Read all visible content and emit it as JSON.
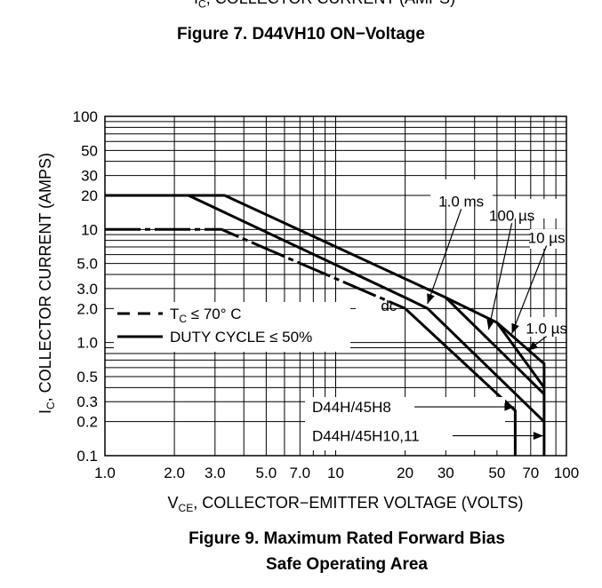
{
  "previous_figure": {
    "axis_label_prefix": "I",
    "axis_label_sub": "C",
    "axis_label_rest": ", COLLECTOR CURRENT (AMPS)",
    "title": "Figure 7. D44VH10 ON−Voltage"
  },
  "figure": {
    "title_line1": "Figure 9. Maximum Rated Forward Bias",
    "title_line2": "Safe Operating Area"
  },
  "chart_data": {
    "type": "line",
    "x_scale": "log",
    "y_scale": "log",
    "xlim": [
      1,
      100
    ],
    "ylim": [
      0.1,
      100
    ],
    "grid": true,
    "xlabel": {
      "prefix": "V",
      "sub": "CE",
      "rest": ", COLLECTOR−EMITTER VOLTAGE (VOLTS)"
    },
    "ylabel": {
      "prefix": "I",
      "sub": "C",
      "rest": ", COLLECTOR CURRENT (AMPS)"
    },
    "xticks": [
      {
        "value": 1,
        "label": "1.0"
      },
      {
        "value": 2,
        "label": "2.0"
      },
      {
        "value": 3,
        "label": "3.0"
      },
      {
        "value": 5,
        "label": "5.0"
      },
      {
        "value": 7,
        "label": "7.0"
      },
      {
        "value": 10,
        "label": "10"
      },
      {
        "value": 20,
        "label": "20"
      },
      {
        "value": 30,
        "label": "30"
      },
      {
        "value": 50,
        "label": "50"
      },
      {
        "value": 70,
        "label": "70"
      },
      {
        "value": 100,
        "label": "100"
      }
    ],
    "yticks": [
      {
        "value": 100,
        "label": "100"
      },
      {
        "value": 50,
        "label": "50"
      },
      {
        "value": 30,
        "label": "30"
      },
      {
        "value": 20,
        "label": "20"
      },
      {
        "value": 10,
        "label": "10"
      },
      {
        "value": 5,
        "label": "5.0"
      },
      {
        "value": 3,
        "label": "3.0"
      },
      {
        "value": 2,
        "label": "2.0"
      },
      {
        "value": 1,
        "label": "1.0"
      },
      {
        "value": 0.5,
        "label": "0.5"
      },
      {
        "value": 0.3,
        "label": "0.3"
      },
      {
        "value": 0.2,
        "label": "0.2"
      },
      {
        "value": 0.1,
        "label": "0.1"
      }
    ],
    "series": [
      {
        "name": "dc",
        "style": "dashed-line-dot",
        "points": [
          [
            1,
            10
          ],
          [
            3.2,
            10
          ],
          [
            20,
            2
          ]
        ]
      },
      {
        "name": "dc",
        "style": "solid",
        "points": [
          [
            20,
            2
          ],
          [
            60,
            0.25
          ],
          [
            60,
            0.1
          ]
        ]
      },
      {
        "name": "1.0 ms",
        "style": "dashed-line-dot",
        "points": [
          [
            1,
            20
          ],
          [
            2.3,
            20
          ]
        ]
      },
      {
        "name": "1.0 ms",
        "style": "solid",
        "points": [
          [
            2.3,
            20
          ],
          [
            20,
            2.5
          ],
          [
            25,
            2
          ],
          [
            80,
            0.2
          ]
        ]
      },
      {
        "name": "100 µs",
        "style": "solid",
        "points": [
          [
            1,
            20
          ],
          [
            3.3,
            20
          ],
          [
            30,
            2.5
          ],
          [
            80,
            0.35
          ]
        ]
      },
      {
        "name": "10 µs",
        "style": "solid",
        "points": [
          [
            30,
            2.5
          ],
          [
            50,
            1.5
          ],
          [
            80,
            0.4
          ]
        ]
      },
      {
        "name": "1.0 µs",
        "style": "solid",
        "points": [
          [
            50,
            1.5
          ],
          [
            80,
            0.65
          ],
          [
            80,
            0.1
          ]
        ]
      }
    ],
    "curve_labels": [
      {
        "text": "1.0 ms",
        "x": 35,
        "y": 16,
        "arrow_to": [
          25,
          2.2
        ]
      },
      {
        "text": "100 µs",
        "x": 58,
        "y": 12,
        "arrow_to": [
          46,
          1.3
        ]
      },
      {
        "text": "10 µs",
        "x": 82,
        "y": 7.6,
        "arrow_to": [
          58,
          1.2
        ]
      },
      {
        "text": "1.0 µs",
        "x": 82,
        "y": 1.2,
        "arrow_to": [
          68,
          0.85
        ]
      },
      {
        "text": "dc",
        "x": 17,
        "y": 1.9
      }
    ],
    "legend": {
      "placement": "left",
      "items": [
        {
          "style": "dashed",
          "prefix": "T",
          "sub": "C",
          "rest": " ≤ 70° C"
        },
        {
          "style": "solid",
          "text": "DUTY CYCLE ≤ 50%"
        }
      ]
    },
    "annotations": [
      {
        "text": "D44H/45H8",
        "x": 38,
        "y": 0.27,
        "arrow_to": [
          60,
          0.27
        ]
      },
      {
        "text": "D44H/45H10,11",
        "x": 38,
        "y": 0.15,
        "arrow_to": [
          80,
          0.15
        ]
      }
    ]
  }
}
